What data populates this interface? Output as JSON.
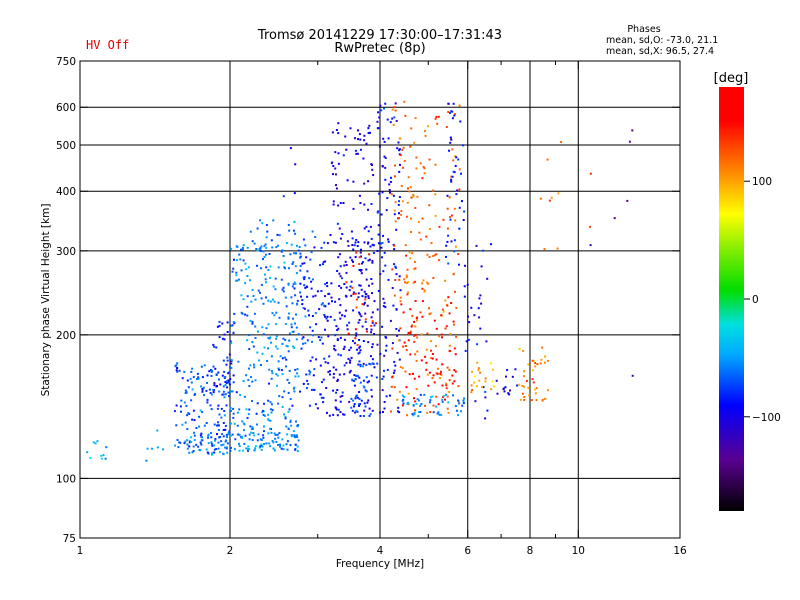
{
  "status": {
    "hv_label": "HV Off",
    "hv_color": "#e00000"
  },
  "chart_data": {
    "type": "scatter",
    "title": "Tromsø 20141229 17:30:00–17:31:43",
    "subtitle": "RwPretec (8p)",
    "xlabel": "Frequency [MHz]",
    "ylabel": "Stationary phase Virtual Height [km]",
    "x_scale": "log",
    "y_scale": "log",
    "xlim": [
      1,
      16
    ],
    "ylim": [
      75,
      750
    ],
    "x_ticks": [
      1,
      2,
      4,
      6,
      8,
      10,
      16
    ],
    "x_tick_labels": [
      "1",
      "2",
      "4",
      "6",
      "8",
      "10",
      "16"
    ],
    "x_minor_ticks": [
      3,
      5,
      7,
      9
    ],
    "y_ticks": [
      75,
      100,
      200,
      300,
      400,
      500,
      600,
      750
    ],
    "y_tick_labels": [
      "75",
      "100",
      "200",
      "300",
      "400",
      "500",
      "600",
      "750"
    ],
    "grid": true,
    "grid_x": [
      2,
      4,
      6,
      8,
      10
    ],
    "grid_y": [
      100,
      200,
      300,
      400,
      500,
      600
    ],
    "phases": {
      "title": "Phases",
      "line_o": "mean, sd,O: -73.0, 21.1",
      "line_x": "mean, sd,X:  96.5, 27.4"
    },
    "colorbar": {
      "label": "[deg]",
      "range": [
        -180,
        180
      ],
      "ticks": [
        100,
        0,
        -100
      ],
      "tick_labels": [
        "100",
        "0",
        "−100"
      ]
    },
    "clusters": [
      {
        "x": [
          1.02,
          1.15
        ],
        "y": [
          108,
          120
        ],
        "phase": -45,
        "n": 10
      },
      {
        "x": [
          1.3,
          1.55
        ],
        "y": [
          106,
          130
        ],
        "phase": -45,
        "n": 6
      },
      {
        "x": [
          1.55,
          2.0
        ],
        "y": [
          112,
          175
        ],
        "phase": -70,
        "n": 150
      },
      {
        "x": [
          1.62,
          2.0
        ],
        "y": [
          112,
          125
        ],
        "phase": -55,
        "n": 45
      },
      {
        "x": [
          1.85,
          2.05
        ],
        "y": [
          155,
          215
        ],
        "phase": -92,
        "n": 40
      },
      {
        "x": [
          2.0,
          2.75
        ],
        "y": [
          114,
          125
        ],
        "phase": -55,
        "n": 90
      },
      {
        "x": [
          1.95,
          2.75
        ],
        "y": [
          125,
          180
        ],
        "phase": -60,
        "n": 130
      },
      {
        "x": [
          2.0,
          2.75
        ],
        "y": [
          180,
          310
        ],
        "phase": -58,
        "n": 170
      },
      {
        "x": [
          2.2,
          2.75
        ],
        "y": [
          290,
          350
        ],
        "phase": -62,
        "n": 30
      },
      {
        "x": [
          2.55,
          2.9
        ],
        "y": [
          380,
          520
        ],
        "phase": -95,
        "n": 4
      },
      {
        "x": [
          2.75,
          3.1
        ],
        "y": [
          140,
          330
        ],
        "phase": -78,
        "n": 100
      },
      {
        "x": [
          3.1,
          3.9
        ],
        "y": [
          135,
          330
        ],
        "phase": -95,
        "n": 240
      },
      {
        "x": [
          3.2,
          3.9
        ],
        "y": [
          330,
          560
        ],
        "phase": -100,
        "n": 60
      },
      {
        "x": [
          3.4,
          3.95
        ],
        "y": [
          190,
          300
        ],
        "phase": 140,
        "n": 22
      },
      {
        "x": [
          3.5,
          3.95
        ],
        "y": [
          135,
          175
        ],
        "phase": -70,
        "n": 40
      },
      {
        "x": [
          3.95,
          4.4
        ],
        "y": [
          135,
          620
        ],
        "phase": -95,
        "n": 120
      },
      {
        "x": [
          4.2,
          5.8
        ],
        "y": [
          135,
          620
        ],
        "phase": 120,
        "n": 220
      },
      {
        "x": [
          4.4,
          5.7
        ],
        "y": [
          140,
          240
        ],
        "phase": 160,
        "n": 60
      },
      {
        "x": [
          4.4,
          5.9
        ],
        "y": [
          135,
          150
        ],
        "phase": -55,
        "n": 50
      },
      {
        "x": [
          5.4,
          5.9
        ],
        "y": [
          280,
          620
        ],
        "phase": -90,
        "n": 40
      },
      {
        "x": [
          5.9,
          6.7
        ],
        "y": [
          130,
          310
        ],
        "phase": -100,
        "n": 30
      },
      {
        "x": [
          6.1,
          6.8
        ],
        "y": [
          150,
          175
        ],
        "phase": 100,
        "n": 20
      },
      {
        "x": [
          6.8,
          7.6
        ],
        "y": [
          150,
          170
        ],
        "phase": -100,
        "n": 14
      },
      {
        "x": [
          7.6,
          8.7
        ],
        "y": [
          145,
          190
        ],
        "phase": 110,
        "n": 40
      },
      {
        "x": [
          8.0,
          11.0
        ],
        "y": [
          300,
          600
        ],
        "phase": 115,
        "n": 10
      },
      {
        "x": [
          10.5,
          16.0
        ],
        "y": [
          140,
          560
        ],
        "phase": -130,
        "n": 6
      }
    ]
  }
}
